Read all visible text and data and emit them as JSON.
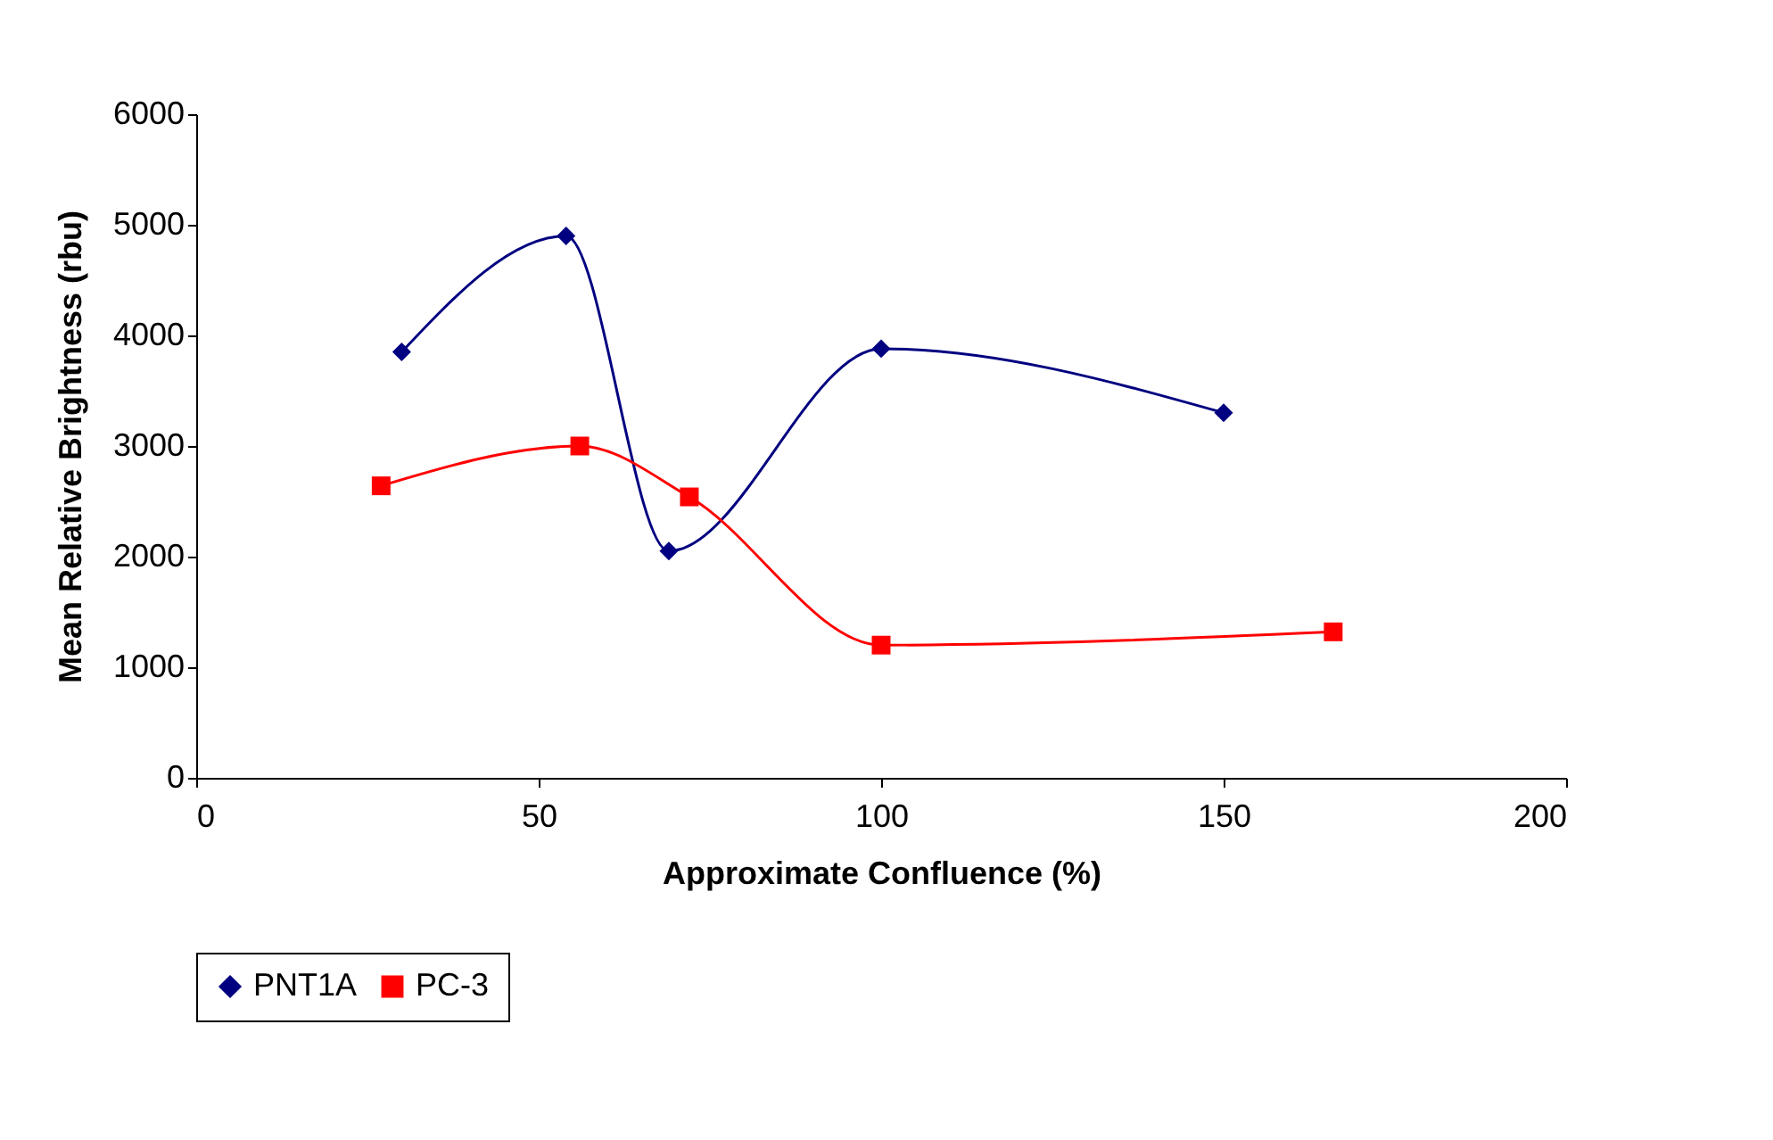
{
  "chart_data": {
    "type": "line",
    "xlabel": "Approximate Confluence (%)",
    "ylabel": "Mean Relative Brightness (rbu)",
    "xlim": [
      0,
      200
    ],
    "xticks": [
      0,
      50,
      100,
      150,
      200
    ],
    "ylim": [
      0,
      6000
    ],
    "yticks": [
      0,
      1000,
      2000,
      3000,
      4000,
      5000,
      6000
    ],
    "grid": false,
    "legend": "bottom",
    "series": [
      {
        "name": "PNT1A",
        "color": "#000080",
        "marker": "diamond",
        "x": [
          30,
          54,
          69,
          100,
          150
        ],
        "values": [
          3850,
          4900,
          2050,
          3880,
          3300
        ]
      },
      {
        "name": "PC-3",
        "color": "#ff0000",
        "marker": "square",
        "x": [
          27,
          56,
          72,
          100,
          166
        ],
        "values": [
          2640,
          3000,
          2540,
          1200,
          1320
        ]
      }
    ]
  }
}
